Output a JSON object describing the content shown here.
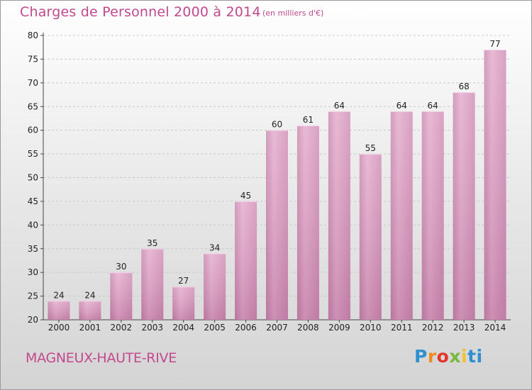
{
  "header": {
    "title": "Charges de Personnel 2000 à 2014",
    "unit": "(en milliers d'€)"
  },
  "footer": {
    "commune": "MAGNEUX-HAUTE-RIVE",
    "logo_letters": [
      "P",
      "r",
      "o",
      "x",
      "i",
      "t",
      "i"
    ]
  },
  "colors": {
    "bar": "#d998be",
    "bar_light": "#e9b4d2",
    "bar_dark": "#b9729b",
    "title": "#c2498e"
  },
  "chart_data": {
    "type": "bar",
    "title": "Charges de Personnel 2000 à 2014",
    "subtitle": "(en milliers d'€)",
    "xlabel": "",
    "ylabel": "",
    "categories": [
      "2000",
      "2001",
      "2002",
      "2003",
      "2004",
      "2005",
      "2006",
      "2007",
      "2008",
      "2009",
      "2010",
      "2011",
      "2012",
      "2013",
      "2014"
    ],
    "values": [
      24,
      24,
      30,
      35,
      27,
      34,
      45,
      60,
      61,
      64,
      55,
      64,
      64,
      68,
      77
    ],
    "ylim": [
      20,
      80
    ],
    "yticks": [
      20,
      25,
      30,
      35,
      40,
      45,
      50,
      55,
      60,
      65,
      70,
      75,
      80
    ],
    "grid": true
  }
}
